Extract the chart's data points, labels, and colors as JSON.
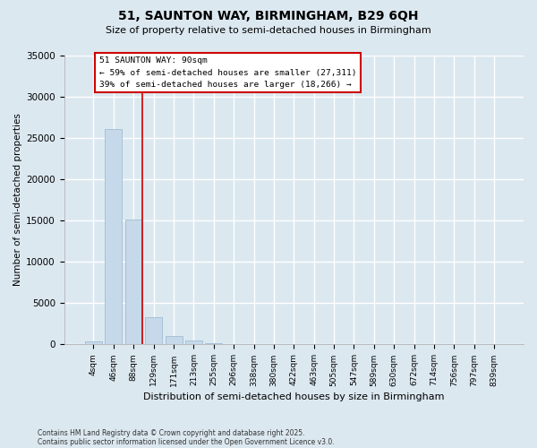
{
  "title_line1": "51, SAUNTON WAY, BIRMINGHAM, B29 6QH",
  "title_line2": "Size of property relative to semi-detached houses in Birmingham",
  "xlabel": "Distribution of semi-detached houses by size in Birmingham",
  "ylabel": "Number of semi-detached properties",
  "categories": [
    "4sqm",
    "46sqm",
    "88sqm",
    "129sqm",
    "171sqm",
    "213sqm",
    "255sqm",
    "296sqm",
    "338sqm",
    "380sqm",
    "422sqm",
    "463sqm",
    "505sqm",
    "547sqm",
    "589sqm",
    "630sqm",
    "672sqm",
    "714sqm",
    "756sqm",
    "797sqm",
    "839sqm"
  ],
  "values": [
    400,
    26100,
    15100,
    3300,
    1050,
    450,
    175,
    55,
    12,
    5,
    3,
    1,
    0,
    0,
    0,
    0,
    0,
    0,
    0,
    0,
    0
  ],
  "bar_color": "#c5d9ea",
  "bar_edge_color": "#a0bdd4",
  "property_line_color": "#cc0000",
  "annotation_title": "51 SAUNTON WAY: 90sqm",
  "annotation_line1": "← 59% of semi-detached houses are smaller (27,311)",
  "annotation_line2": "39% of semi-detached houses are larger (18,266) →",
  "ylim_max": 35000,
  "yticks": [
    0,
    5000,
    10000,
    15000,
    20000,
    25000,
    30000,
    35000
  ],
  "background_color": "#dce8f0",
  "plot_bg_color": "#dce8f0",
  "grid_color": "#ffffff",
  "footer_line1": "Contains HM Land Registry data © Crown copyright and database right 2025.",
  "footer_line2": "Contains public sector information licensed under the Open Government Licence v3.0."
}
